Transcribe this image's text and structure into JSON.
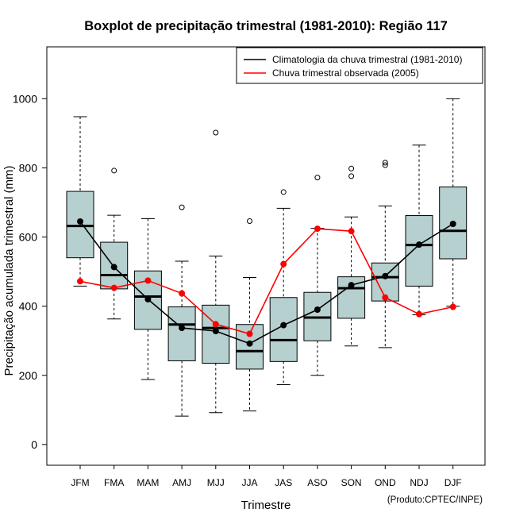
{
  "chart_data": {
    "type": "boxplot",
    "title": "Boxplot de precipitação trimestral (1981-2010): Região 117",
    "xlabel": "Trimestre",
    "ylabel": "Precipitação acumulada trimestral (mm)",
    "ylim": [
      -60,
      1150
    ],
    "yticks": [
      0,
      200,
      400,
      600,
      800,
      1000
    ],
    "categories": [
      "JFM",
      "FMA",
      "MAM",
      "AMJ",
      "MJJ",
      "JJA",
      "JAS",
      "ASO",
      "SON",
      "OND",
      "NDJ",
      "DJF"
    ],
    "boxes": [
      {
        "whisker_low": 458,
        "q1": 540,
        "median": 632,
        "q3": 732,
        "whisker_high": 948,
        "outliers": []
      },
      {
        "whisker_low": 363,
        "q1": 450,
        "median": 490,
        "q3": 585,
        "whisker_high": 663,
        "outliers": [
          792
        ]
      },
      {
        "whisker_low": 188,
        "q1": 333,
        "median": 428,
        "q3": 502,
        "whisker_high": 653,
        "outliers": []
      },
      {
        "whisker_low": 82,
        "q1": 242,
        "median": 347,
        "q3": 398,
        "whisker_high": 530,
        "outliers": [
          686
        ]
      },
      {
        "whisker_low": 92,
        "q1": 235,
        "median": 337,
        "q3": 403,
        "whisker_high": 545,
        "outliers": [
          902
        ]
      },
      {
        "whisker_low": 97,
        "q1": 218,
        "median": 270,
        "q3": 347,
        "whisker_high": 483,
        "outliers": [
          646
        ]
      },
      {
        "whisker_low": 173,
        "q1": 240,
        "median": 302,
        "q3": 425,
        "whisker_high": 683,
        "outliers": [
          730
        ]
      },
      {
        "whisker_low": 200,
        "q1": 300,
        "median": 367,
        "q3": 440,
        "whisker_high": 625,
        "outliers": [
          772
        ]
      },
      {
        "whisker_low": 285,
        "q1": 365,
        "median": 452,
        "q3": 485,
        "whisker_high": 658,
        "outliers": [
          776,
          798
        ]
      },
      {
        "whisker_low": 280,
        "q1": 415,
        "median": 484,
        "q3": 525,
        "whisker_high": 690,
        "outliers": [
          808,
          815
        ]
      },
      {
        "whisker_low": 375,
        "q1": 458,
        "median": 577,
        "q3": 662,
        "whisker_high": 866,
        "outliers": []
      },
      {
        "whisker_low": 400,
        "q1": 537,
        "median": 618,
        "q3": 745,
        "whisker_high": 1000,
        "outliers": []
      }
    ],
    "series": [
      {
        "name": "Climatologia da chuva trimestral (1981-2010)",
        "color": "#000000",
        "values": [
          645,
          513,
          420,
          337,
          328,
          292,
          345,
          390,
          461,
          487,
          578,
          638
        ]
      },
      {
        "name": "Chuva trimestral observada (2005)",
        "color": "#ff0000",
        "values": [
          472,
          453,
          474,
          437,
          348,
          320,
          522,
          624,
          617,
          425,
          377,
          398
        ]
      }
    ],
    "legend": "top-right",
    "box_color": "#b6cfcf",
    "footnote": "(Produto:CPTEC/INPE)"
  }
}
